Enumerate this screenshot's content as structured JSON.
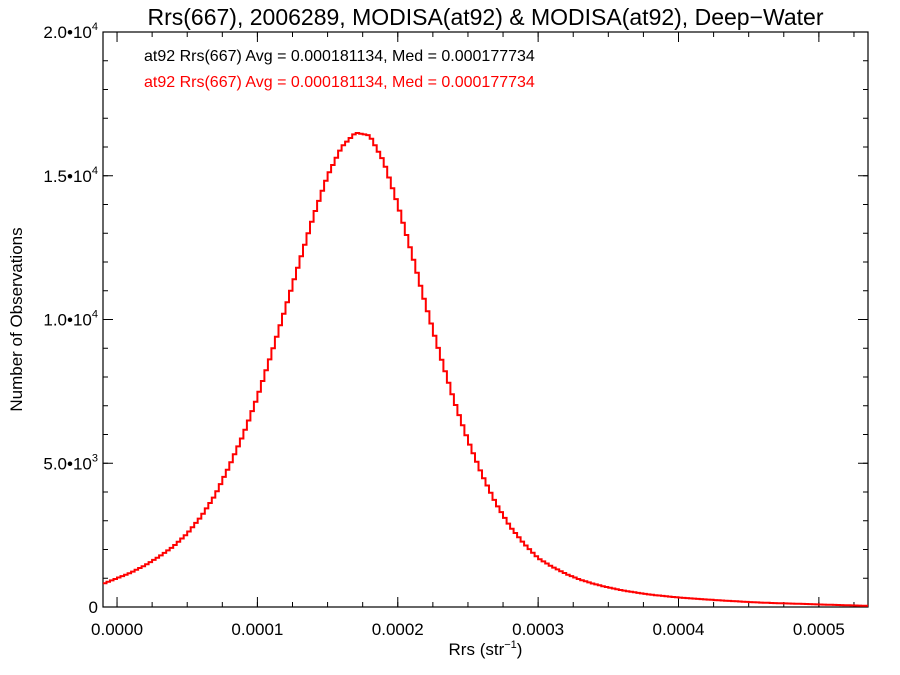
{
  "chart_data": {
    "type": "histogram",
    "title": "Rrs(667), 2006289, MODISA(at92) & MODISA(at92), Deep−Water",
    "xlabel_prefix": "Rrs (str",
    "xlabel_sup": "−1",
    "xlabel_suffix": ")",
    "ylabel": "Number of Observations",
    "xlim": [
      -1e-05,
      0.000535
    ],
    "ylim": [
      0,
      20000
    ],
    "grid": false,
    "x_ticks": [
      {
        "value": 0.0,
        "label": "0.0000"
      },
      {
        "value": 0.0001,
        "label": "0.0001"
      },
      {
        "value": 0.0002,
        "label": "0.0002"
      },
      {
        "value": 0.0003,
        "label": "0.0003"
      },
      {
        "value": 0.0004,
        "label": "0.0004"
      },
      {
        "value": 0.0005,
        "label": "0.0005"
      }
    ],
    "y_ticks": [
      {
        "value": 0,
        "base": "0",
        "exp": ""
      },
      {
        "value": 5000,
        "base": "5.0•10",
        "exp": "3"
      },
      {
        "value": 10000,
        "base": "1.0•10",
        "exp": "4"
      },
      {
        "value": 15000,
        "base": "1.5•10",
        "exp": "4"
      },
      {
        "value": 20000,
        "base": "2.0•10",
        "exp": "4"
      }
    ],
    "annotations": [
      {
        "text": "at92 Rrs(667) Avg = 0.000181134, Med = 0.000177734",
        "color": "#000000"
      },
      {
        "text": "at92 Rrs(667) Avg = 0.000181134, Med = 0.000177734",
        "color": "#ff0000"
      }
    ],
    "series": [
      {
        "color": "#ff0000",
        "bin_width": 2.5e-06,
        "x": [
          -1e-05,
          0.0,
          1e-05,
          2e-05,
          3e-05,
          4e-05,
          5e-05,
          6e-05,
          7e-05,
          8e-05,
          9e-05,
          0.0001,
          0.00011,
          0.00012,
          0.00013,
          0.00014,
          0.00015,
          0.00016,
          0.00017,
          0.00018,
          0.00019,
          0.0002,
          0.00021,
          0.00022,
          0.00023,
          0.00024,
          0.00025,
          0.00026,
          0.00027,
          0.00028,
          0.00029,
          0.0003,
          0.00031,
          0.00032,
          0.00033,
          0.00034,
          0.00035,
          0.00036,
          0.00037,
          0.00038,
          0.00039,
          0.0004,
          0.00042,
          0.00044,
          0.00046,
          0.00048,
          0.0005,
          0.00052,
          0.000535
        ],
        "y": [
          800,
          1000,
          1200,
          1450,
          1750,
          2100,
          2550,
          3150,
          3900,
          4900,
          6000,
          7300,
          8800,
          10400,
          12000,
          13600,
          15000,
          16000,
          16500,
          16400,
          15500,
          14000,
          12300,
          10500,
          8800,
          7200,
          5800,
          4600,
          3600,
          2800,
          2200,
          1700,
          1400,
          1150,
          950,
          800,
          680,
          580,
          500,
          430,
          380,
          330,
          260,
          200,
          150,
          120,
          90,
          60,
          40
        ]
      }
    ]
  }
}
